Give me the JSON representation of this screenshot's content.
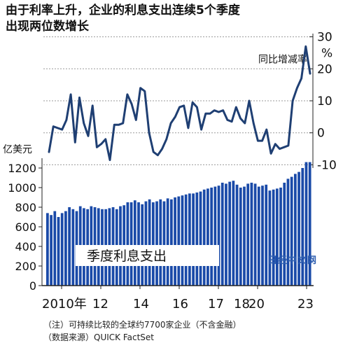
{
  "title_line1": "由于利率上升，企业的利息支出连续5个季度",
  "title_line2": "出现两位数增长",
  "watermark": "日经中文网",
  "notes": [
    "（注）可持续比较的全球约7700家企业（不含金融）",
    "（数据来源）QUICK FactSet"
  ],
  "chart_data": [
    {
      "type": "line",
      "series_label": "同比增减率",
      "unit": "%",
      "y_ticks": [
        "30",
        "20",
        "10",
        "0",
        "-10"
      ],
      "ylim": [
        -11,
        31
      ],
      "color": "#1f3f73",
      "values": [
        -6,
        2,
        1.5,
        1,
        4,
        12,
        -3,
        11,
        3,
        -1,
        8.5,
        -4.5,
        -3.5,
        -2,
        -8.5,
        2.5,
        2.5,
        3,
        12,
        9,
        4,
        14,
        13,
        0,
        -6,
        -7,
        -5,
        -2,
        3,
        5,
        8,
        8.5,
        1.5,
        9.5,
        8,
        1,
        6,
        6,
        7,
        6.5,
        7,
        4,
        3.5,
        8,
        4.5,
        3,
        10,
        3,
        -2.5,
        -2.5,
        1,
        -6.5,
        -3.5,
        -5,
        -4.5,
        -4,
        10,
        14,
        17,
        27,
        18.5
      ]
    },
    {
      "type": "bar",
      "series_label": "季度利息支出",
      "unit": "亿美元",
      "y_ticks": [
        "1200",
        "1000",
        "800",
        "600",
        "400",
        "200",
        "0"
      ],
      "ylim": [
        0,
        1300
      ],
      "color": "#1a4aa8",
      "x_tick_labels": [
        "2010年",
        "12",
        "14",
        "16",
        "17",
        "18",
        "20",
        "23"
      ],
      "values": [
        740,
        720,
        760,
        700,
        740,
        760,
        800,
        780,
        760,
        810,
        790,
        780,
        810,
        800,
        790,
        780,
        780,
        790,
        800,
        780,
        810,
        820,
        850,
        850,
        870,
        850,
        830,
        860,
        880,
        850,
        860,
        880,
        860,
        890,
        880,
        900,
        910,
        920,
        930,
        940,
        940,
        950,
        960,
        980,
        990,
        1000,
        1010,
        1020,
        1050,
        1040,
        1060,
        1070,
        1030,
        1000,
        1010,
        1040,
        1050,
        1040,
        1010,
        1020,
        1030,
        970,
        980,
        990,
        1000,
        1050,
        1090,
        1110,
        1140,
        1160,
        1200,
        1260,
        1260
      ]
    }
  ]
}
